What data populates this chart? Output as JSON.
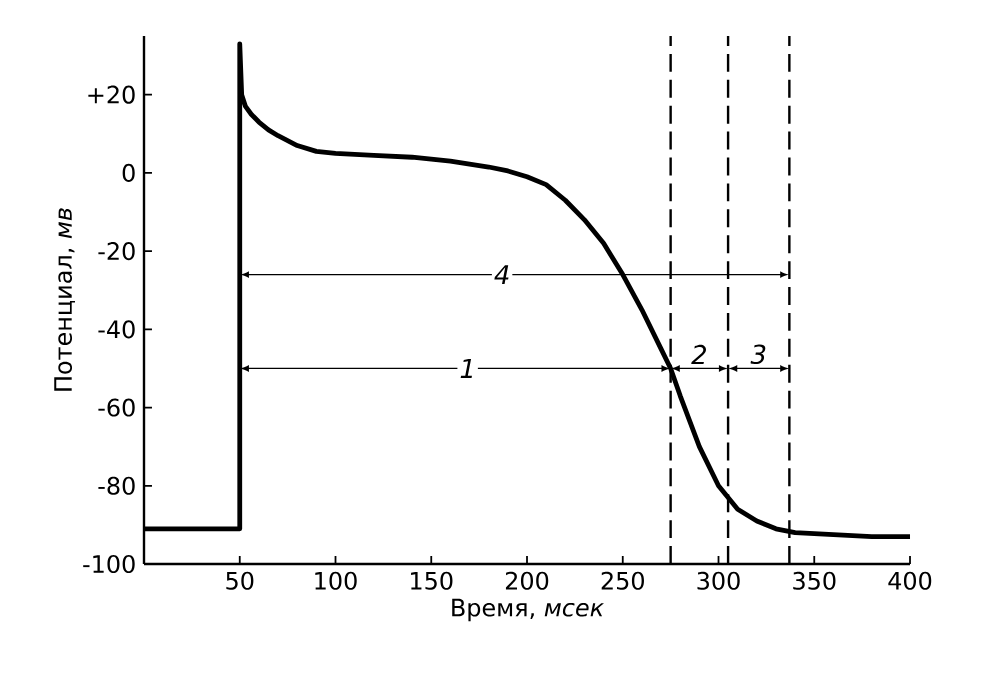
{
  "chart_data": {
    "type": "line",
    "xlabel": "Время, *мсек*",
    "ylabel": "Потенциал, *мв*",
    "x": [
      0,
      50,
      50,
      51,
      53,
      56,
      60,
      65,
      70,
      80,
      90,
      100,
      120,
      140,
      160,
      180,
      190,
      200,
      210,
      220,
      230,
      240,
      250,
      260,
      270,
      275,
      280,
      290,
      300,
      310,
      320,
      330,
      340,
      360,
      380,
      400
    ],
    "series": [
      {
        "color": "#000000",
        "values": [
          -91,
          -91,
          33,
          20,
          17,
          15,
          13,
          11,
          9.5,
          7,
          5.5,
          5,
          4.5,
          4,
          3,
          1.5,
          0.5,
          -1,
          -3,
          -7,
          -12,
          -18,
          -26,
          -35,
          -45,
          -50,
          -57,
          -70,
          -80,
          -86,
          -89,
          -91,
          -92,
          -92.5,
          -93,
          -93
        ]
      }
    ],
    "xlim": [
      0,
      400
    ],
    "ylim": [
      -100,
      35
    ],
    "xticks": [
      50,
      100,
      150,
      200,
      250,
      300,
      350,
      400
    ],
    "yticks": [
      -100,
      -80,
      -60,
      -40,
      -20,
      0,
      {
        "value": 20,
        "label": "+20"
      }
    ],
    "ref_lines": [
      {
        "axis": "x",
        "value": 275,
        "line_style": "dashed"
      },
      {
        "axis": "x",
        "value": 305,
        "line_style": "dashed"
      },
      {
        "axis": "x",
        "value": 337,
        "line_style": "dashed"
      }
    ],
    "annotations": [
      {
        "text": "4",
        "x": 187,
        "y": -26
      },
      {
        "text": "1",
        "x": 169,
        "y": -50
      },
      "2",
      "3"
    ],
    "grid": false,
    "marker": "none",
    "line_style": "solid"
  }
}
